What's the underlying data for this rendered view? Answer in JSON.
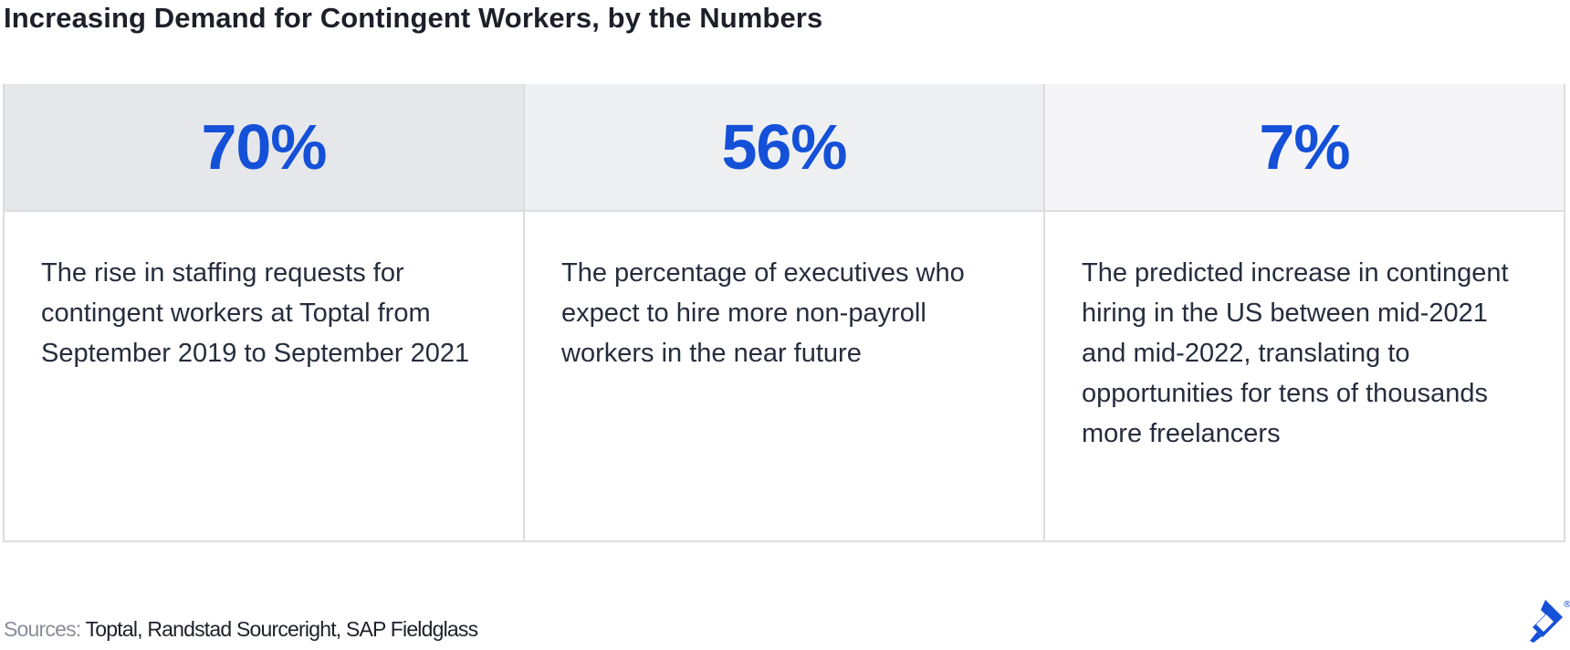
{
  "title": "Increasing Demand for Contingent Workers, by the Numbers",
  "stats": [
    {
      "value": "70%",
      "description": "The rise in staffing requests for contingent workers at Toptal from September 2019 to September 2021"
    },
    {
      "value": "56%",
      "description": "The percentage of executives who expect to hire more non-payroll workers in the near future"
    },
    {
      "value": "7%",
      "description": "The predicted increase in contingent hiring in the US between mid-2021 and mid-2022, translating to opportunities for tens of thousands more freelancers"
    }
  ],
  "footer": {
    "sources_label": "Sources:",
    "sources_text": "Toptal, Randstad Sourceright, SAP Fieldglass"
  },
  "logo": {
    "icon": "toptal-logo-icon",
    "mark": "®"
  },
  "colors": {
    "accent": "#1450D8",
    "text": "#262D3D",
    "muted": "#8A8E99",
    "border": "#DCDDE1"
  }
}
